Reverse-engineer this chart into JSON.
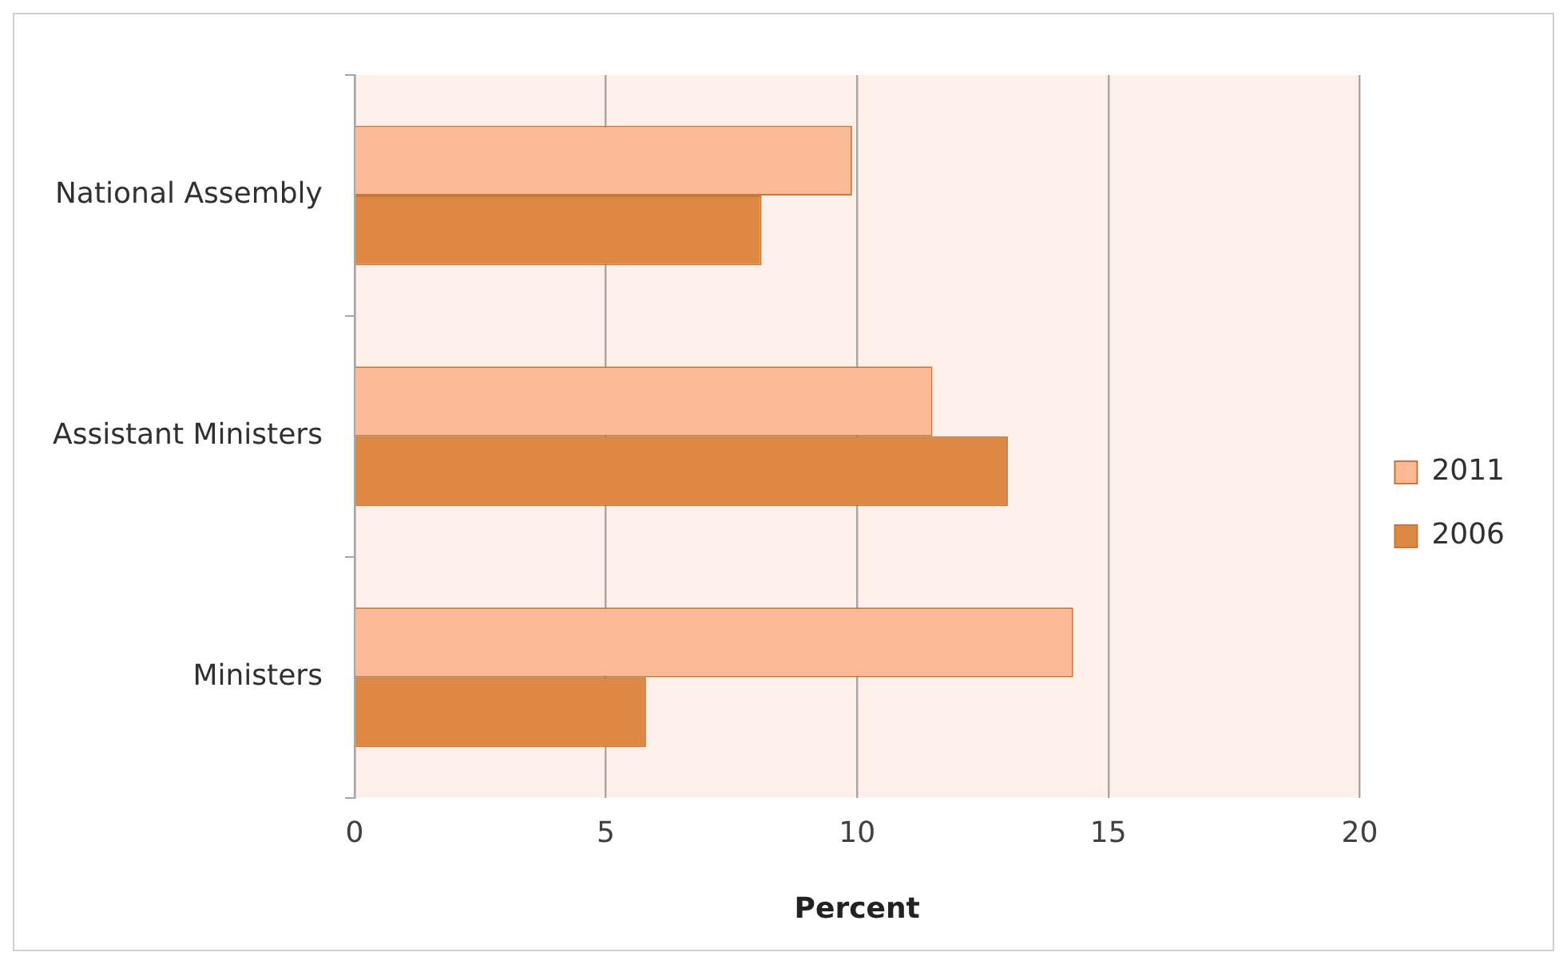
{
  "chart_data": {
    "type": "bar",
    "orientation": "horizontal",
    "xlabel": "Percent",
    "categories": [
      "National Assembly",
      "Assistant Ministers",
      "Ministers"
    ],
    "series": [
      {
        "name": "2011",
        "color": "#fbb995",
        "values": [
          9.9,
          11.5,
          14.3
        ]
      },
      {
        "name": "2006",
        "color": "#dd8943",
        "values": [
          8.1,
          13.0,
          5.8
        ]
      }
    ],
    "xlim": [
      0,
      20
    ],
    "xticks": [
      0,
      5,
      10,
      15,
      20
    ],
    "grid": "x",
    "legend": "right"
  }
}
